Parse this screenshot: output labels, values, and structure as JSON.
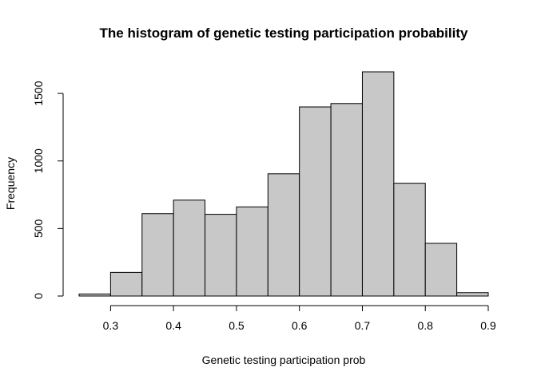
{
  "chart_data": {
    "type": "bar",
    "title": "The histogram of genetic testing participation probability",
    "xlabel": "Genetic testing participation prob",
    "ylabel": "Frequency",
    "bins": [
      {
        "from": 0.25,
        "to": 0.3,
        "count": 15
      },
      {
        "from": 0.3,
        "to": 0.35,
        "count": 175
      },
      {
        "from": 0.35,
        "to": 0.4,
        "count": 610
      },
      {
        "from": 0.4,
        "to": 0.45,
        "count": 710
      },
      {
        "from": 0.45,
        "to": 0.5,
        "count": 605
      },
      {
        "from": 0.5,
        "to": 0.55,
        "count": 660
      },
      {
        "from": 0.55,
        "to": 0.6,
        "count": 905
      },
      {
        "from": 0.6,
        "to": 0.65,
        "count": 1400
      },
      {
        "from": 0.65,
        "to": 0.7,
        "count": 1425
      },
      {
        "from": 0.7,
        "to": 0.75,
        "count": 1660
      },
      {
        "from": 0.75,
        "to": 0.8,
        "count": 835
      },
      {
        "from": 0.8,
        "to": 0.85,
        "count": 390
      },
      {
        "from": 0.85,
        "to": 0.9,
        "count": 25
      }
    ],
    "xticks": [
      0.3,
      0.4,
      0.5,
      0.6,
      0.7,
      0.8,
      0.9
    ],
    "xtick_labels": [
      "0.3",
      "0.4",
      "0.5",
      "0.6",
      "0.7",
      "0.8",
      "0.9"
    ],
    "yticks": [
      0,
      500,
      1000,
      1500
    ],
    "ytick_labels": [
      "0",
      "500",
      "1000",
      "1500"
    ],
    "xlim": [
      0.25,
      0.9
    ],
    "ylim": [
      0,
      1660
    ],
    "grid": false,
    "colors": {
      "bar_fill": "#c8c8c8",
      "bar_stroke": "#000000"
    }
  }
}
